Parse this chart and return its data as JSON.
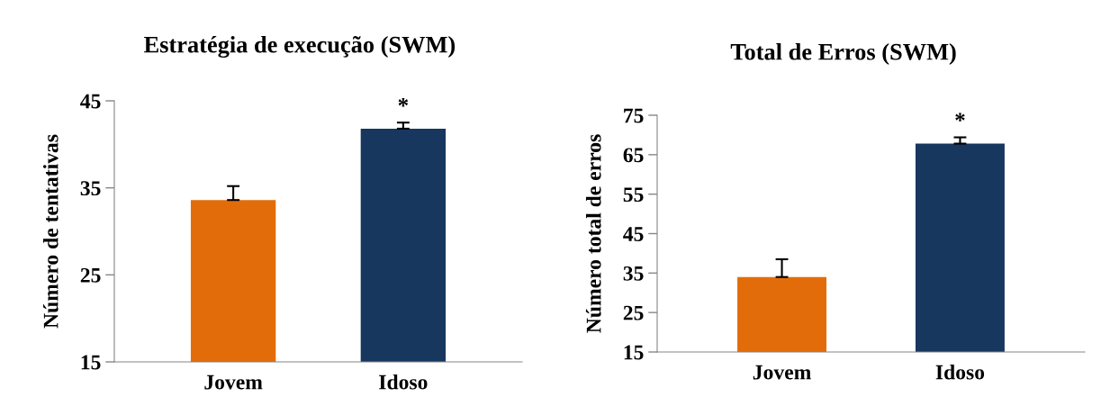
{
  "chart_data": [
    {
      "type": "bar",
      "title": "Estratégia de execução (SWM)",
      "ylabel": "Número de tentativas",
      "categories": [
        "Jovem",
        "Idoso"
      ],
      "values": [
        33.6,
        41.8
      ],
      "errors": [
        1.6,
        0.7
      ],
      "colors": [
        "#e36c0a",
        "#17375e"
      ],
      "ylim": [
        15,
        45
      ],
      "yticks": [
        15,
        25,
        35,
        45
      ],
      "grid": false,
      "legend": false,
      "annotations": [
        "*"
      ]
    },
    {
      "type": "bar",
      "title": "Total de Erros (SWM)",
      "ylabel": "Número total de erros",
      "categories": [
        "Jovem",
        "Idoso"
      ],
      "values": [
        34.0,
        67.8
      ],
      "errors": [
        4.5,
        1.6
      ],
      "colors": [
        "#e36c0a",
        "#17375e"
      ],
      "ylim": [
        15,
        75
      ],
      "yticks": [
        15,
        25,
        35,
        45,
        55,
        65,
        75
      ],
      "grid": false,
      "legend": false,
      "annotations": [
        "*"
      ]
    }
  ]
}
